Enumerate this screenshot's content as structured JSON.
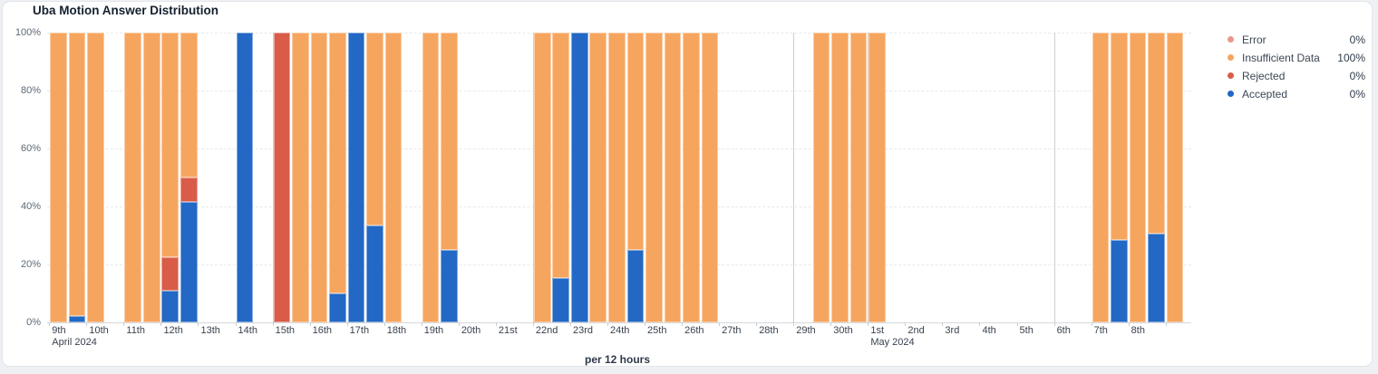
{
  "card": {
    "title": "Uba Motion Answer Distribution"
  },
  "chart_data": {
    "type": "bar",
    "stacked": true,
    "orientation": "vertical",
    "title": "Uba Motion Answer Distribution",
    "x_unit_label": "per 12 hours",
    "bars_per_day": 2,
    "legend_position": "right",
    "y_axis": {
      "min": 0,
      "max": 100,
      "grid": "dashed",
      "ticks": [
        {
          "label": "0%",
          "value": 0
        },
        {
          "label": "20%",
          "value": 20
        },
        {
          "label": "40%",
          "value": 40
        },
        {
          "label": "60%",
          "value": 60
        },
        {
          "label": "80%",
          "value": 80
        },
        {
          "label": "100%",
          "value": 100
        }
      ]
    },
    "x_axis": {
      "days": [
        {
          "label": "9th",
          "month": "April 2024"
        },
        {
          "label": "10th"
        },
        {
          "label": "11th"
        },
        {
          "label": "12th"
        },
        {
          "label": "13th"
        },
        {
          "label": "14th"
        },
        {
          "label": "15th"
        },
        {
          "label": "16th"
        },
        {
          "label": "17th"
        },
        {
          "label": "18th"
        },
        {
          "label": "19th"
        },
        {
          "label": "20th"
        },
        {
          "label": "21st"
        },
        {
          "label": "22nd"
        },
        {
          "label": "23rd"
        },
        {
          "label": "24th"
        },
        {
          "label": "25th"
        },
        {
          "label": "26th"
        },
        {
          "label": "27th"
        },
        {
          "label": "28th"
        },
        {
          "label": "29th"
        },
        {
          "label": "30th"
        },
        {
          "label": "1st",
          "month": "May 2024"
        },
        {
          "label": "2nd"
        },
        {
          "label": "3rd"
        },
        {
          "label": "4th"
        },
        {
          "label": "5th"
        },
        {
          "label": "6th"
        },
        {
          "label": "7th"
        },
        {
          "label": "8th"
        },
        {
          "label": ""
        }
      ]
    },
    "series": [
      {
        "key": "error",
        "name": "Error",
        "color": "#e6998b",
        "legend_value": "0%"
      },
      {
        "key": "insufficient",
        "name": "Insufficient Data",
        "color": "#f6a55f",
        "legend_value": "100%"
      },
      {
        "key": "rejected",
        "name": "Rejected",
        "color": "#d95c49",
        "legend_value": "0%"
      },
      {
        "key": "accepted",
        "name": "Accepted",
        "color": "#2268c4",
        "legend_value": "0%"
      }
    ],
    "stack_order_bottom_to_top": [
      "accepted",
      "rejected",
      "insufficient",
      "error"
    ],
    "vertical_marker_day_indices": [
      6,
      13,
      20,
      22,
      27
    ],
    "bars": [
      {
        "date": "Apr 9 AM",
        "slot": 0,
        "insufficient": 100
      },
      {
        "date": "Apr 9 PM",
        "slot": 1,
        "insufficient": 97.7,
        "accepted": 2.3
      },
      {
        "date": "Apr 10 AM",
        "slot": 2,
        "insufficient": 100
      },
      {
        "date": "Apr 11 AM",
        "slot": 4,
        "insufficient": 100
      },
      {
        "date": "Apr 11 PM",
        "slot": 5,
        "insufficient": 100
      },
      {
        "date": "Apr 12 AM",
        "slot": 6,
        "insufficient": 77.5,
        "rejected": 11.5,
        "accepted": 11
      },
      {
        "date": "Apr 12 PM",
        "slot": 7,
        "insufficient": 50,
        "rejected": 8.5,
        "accepted": 41.5
      },
      {
        "date": "Apr 14 AM",
        "slot": 10,
        "accepted": 100
      },
      {
        "date": "Apr 15 AM",
        "slot": 12,
        "rejected": 100
      },
      {
        "date": "Apr 15 PM",
        "slot": 13,
        "insufficient": 100
      },
      {
        "date": "Apr 16 AM",
        "slot": 14,
        "insufficient": 100
      },
      {
        "date": "Apr 16 PM",
        "slot": 15,
        "insufficient": 90,
        "accepted": 10
      },
      {
        "date": "Apr 17 AM",
        "slot": 16,
        "accepted": 100
      },
      {
        "date": "Apr 17 PM",
        "slot": 17,
        "insufficient": 66.7,
        "accepted": 33.3
      },
      {
        "date": "Apr 18 AM",
        "slot": 18,
        "insufficient": 100
      },
      {
        "date": "Apr 19 AM",
        "slot": 20,
        "insufficient": 100
      },
      {
        "date": "Apr 19 PM",
        "slot": 21,
        "insufficient": 75,
        "accepted": 25
      },
      {
        "date": "Apr 22 AM",
        "slot": 26,
        "insufficient": 100
      },
      {
        "date": "Apr 22 PM",
        "slot": 27,
        "insufficient": 84.7,
        "accepted": 15.3
      },
      {
        "date": "Apr 23 AM",
        "slot": 28,
        "accepted": 100
      },
      {
        "date": "Apr 23 PM",
        "slot": 29,
        "insufficient": 100
      },
      {
        "date": "Apr 24 AM",
        "slot": 30,
        "insufficient": 100
      },
      {
        "date": "Apr 24 PM",
        "slot": 31,
        "insufficient": 75,
        "accepted": 25
      },
      {
        "date": "Apr 25 AM",
        "slot": 32,
        "insufficient": 100
      },
      {
        "date": "Apr 25 PM",
        "slot": 33,
        "insufficient": 100
      },
      {
        "date": "Apr 26 AM",
        "slot": 34,
        "insufficient": 100
      },
      {
        "date": "Apr 26 PM",
        "slot": 35,
        "insufficient": 100
      },
      {
        "date": "Apr 29 PM",
        "slot": 41,
        "insufficient": 100
      },
      {
        "date": "Apr 30 AM",
        "slot": 42,
        "insufficient": 100
      },
      {
        "date": "Apr 30 PM",
        "slot": 43,
        "insufficient": 100
      },
      {
        "date": "May 1 AM",
        "slot": 44,
        "insufficient": 100
      },
      {
        "date": "May 7 AM",
        "slot": 56,
        "insufficient": 100
      },
      {
        "date": "May 7 PM",
        "slot": 57,
        "insufficient": 71.6,
        "accepted": 28.4
      },
      {
        "date": "May 8 AM",
        "slot": 58,
        "insufficient": 100
      },
      {
        "date": "May 8 PM",
        "slot": 59,
        "insufficient": 69.3,
        "accepted": 30.7
      },
      {
        "date": "May 9 AM",
        "slot": 60,
        "insufficient": 100
      }
    ]
  }
}
